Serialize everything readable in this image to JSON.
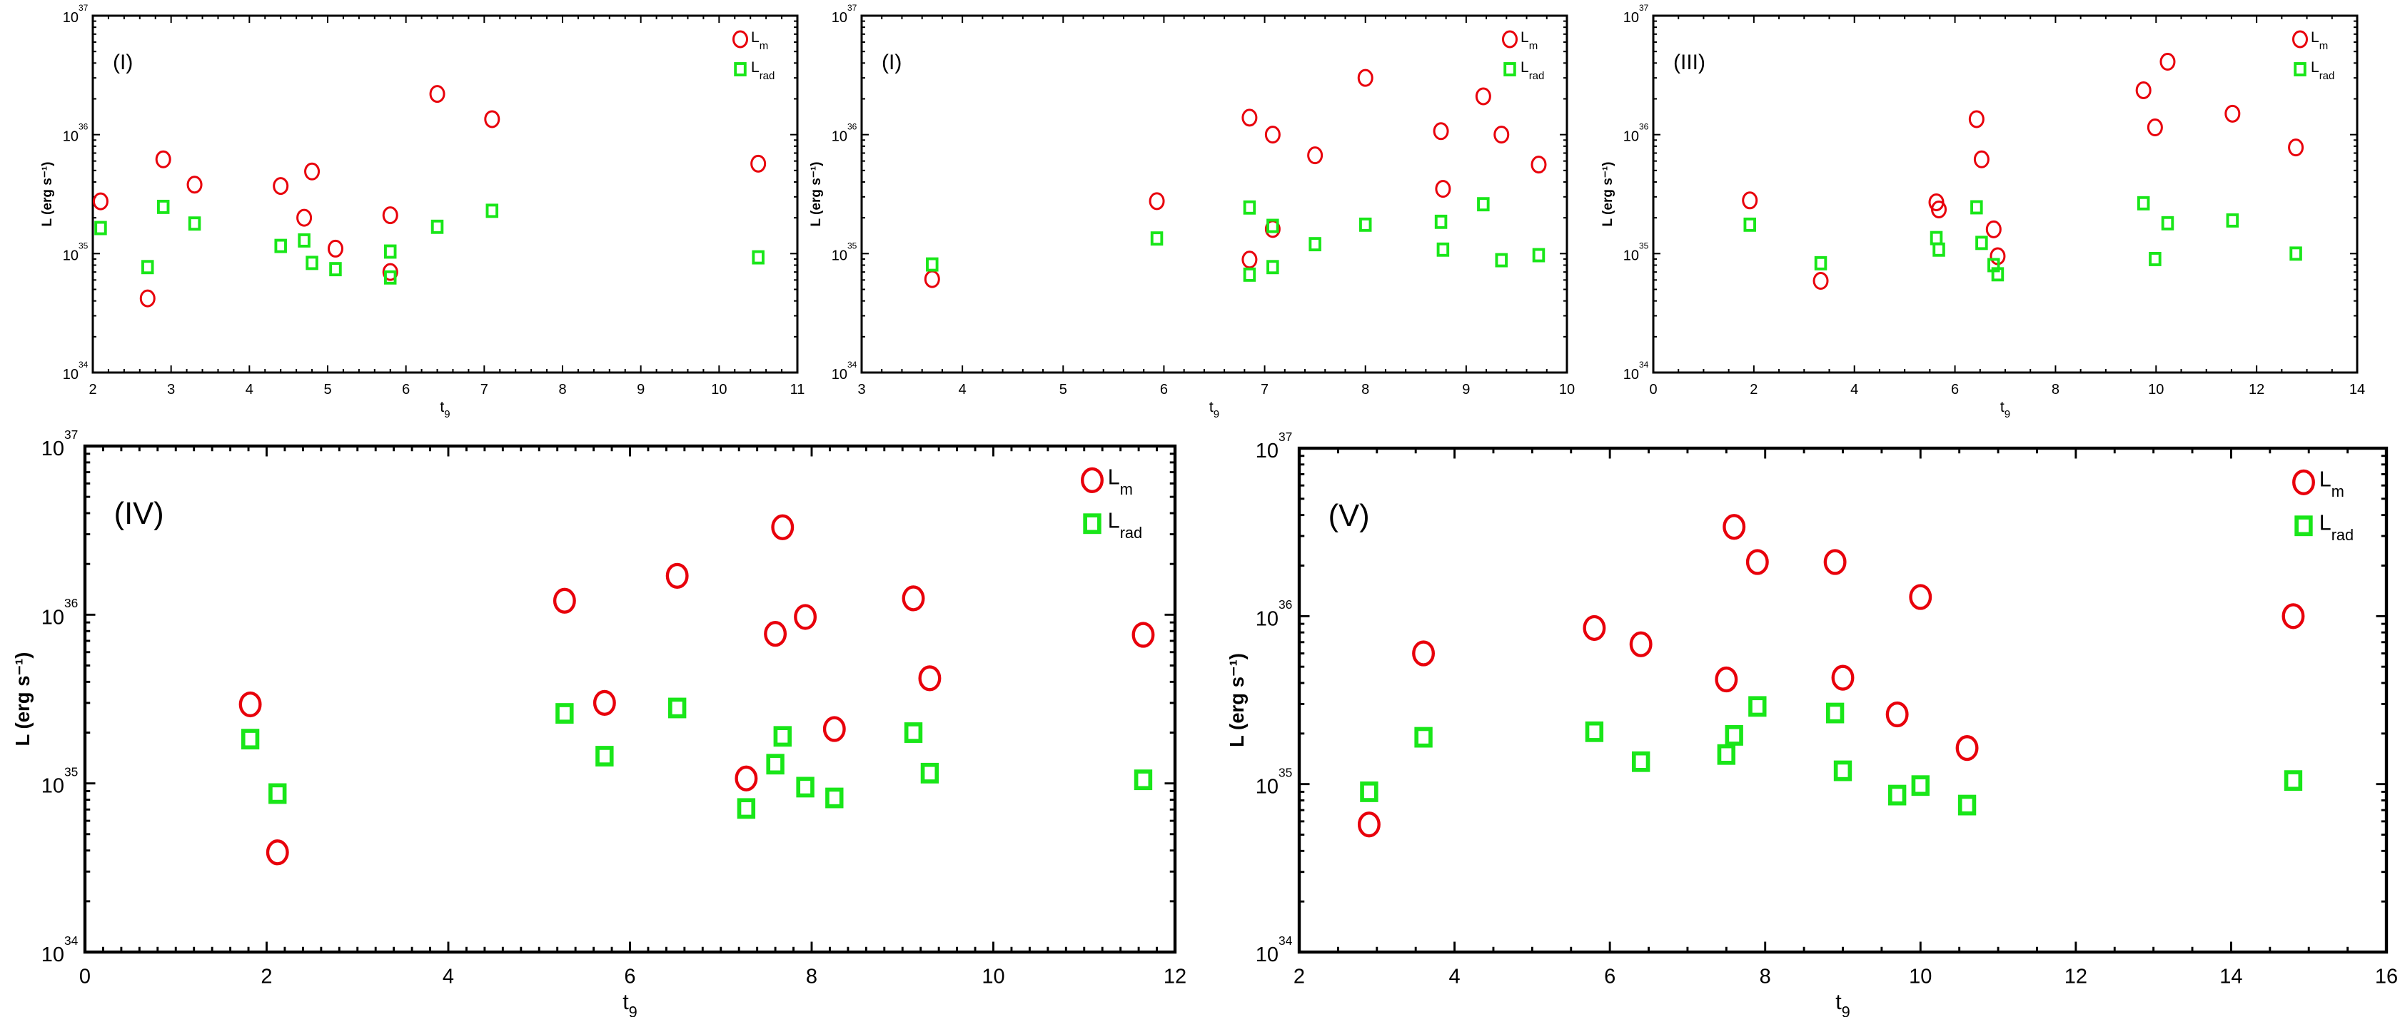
{
  "colors": {
    "lm": "#e8000b",
    "lrad": "#19e619",
    "axis": "#000000"
  },
  "chart_data": [
    {
      "type": "scatter",
      "title": "(I)",
      "xlabel": {
        "base": "t",
        "sub": "9"
      },
      "ylabel": "L (erg s⁻¹)",
      "xlim": [
        2,
        11
      ],
      "xticks": [
        2,
        3,
        4,
        5,
        6,
        7,
        8,
        9,
        10,
        11
      ],
      "xminor": 0.2,
      "ylim": [
        1e+34,
        1e+37
      ],
      "yscale": "log",
      "ytick_base": "10",
      "ytick_exponents": [
        34,
        35,
        36,
        37
      ],
      "legend": [
        {
          "base": "L",
          "sub": "m",
          "marker": "circle"
        },
        {
          "base": "L",
          "sub": "rad",
          "marker": "square"
        }
      ],
      "legend_position": "top-right",
      "series": [
        {
          "name": "L_m",
          "marker": "circle",
          "x": [
            2.1,
            2.7,
            2.9,
            3.3,
            4.4,
            4.7,
            4.8,
            5.1,
            5.8,
            5.8,
            6.4,
            7.1,
            10.5
          ],
          "y": [
            2.75e+35,
            4.2e+34,
            6.2e+35,
            3.8e+35,
            3.7e+35,
            2e+35,
            4.9e+35,
            1.1e+35,
            2.1e+35,
            7e+34,
            2.2e+36,
            1.35e+36,
            5.7e+35
          ]
        },
        {
          "name": "L_rad",
          "marker": "square",
          "x": [
            2.1,
            2.7,
            2.9,
            3.3,
            4.4,
            4.7,
            4.8,
            5.1,
            5.8,
            5.8,
            6.4,
            7.1,
            10.5
          ],
          "y": [
            1.64e+35,
            7.7e+34,
            2.47e+35,
            1.79e+35,
            1.16e+35,
            1.29e+35,
            8.35e+34,
            7.4e+34,
            1.04e+35,
            6.3e+34,
            1.68e+35,
            2.29e+35,
            9.3e+34
          ]
        }
      ]
    },
    {
      "type": "scatter",
      "title": "(I)",
      "xlabel": {
        "base": "t",
        "sub": "9"
      },
      "ylabel": "L (erg s⁻¹)",
      "xlim": [
        3,
        10
      ],
      "xticks": [
        3,
        4,
        5,
        6,
        7,
        8,
        9,
        10
      ],
      "xminor": 0.2,
      "ylim": [
        1e+34,
        1e+37
      ],
      "yscale": "log",
      "ytick_base": "10",
      "ytick_exponents": [
        34,
        35,
        36,
        37
      ],
      "legend": [
        {
          "base": "L",
          "sub": "m",
          "marker": "circle"
        },
        {
          "base": "L",
          "sub": "rad",
          "marker": "square"
        }
      ],
      "legend_position": "top-right",
      "series": [
        {
          "name": "L_m",
          "marker": "circle",
          "x": [
            3.7,
            5.93,
            6.85,
            6.85,
            7.08,
            7.08,
            7.5,
            8.0,
            8.75,
            8.77,
            9.17,
            9.35,
            9.72
          ],
          "y": [
            6.1e+34,
            2.76e+35,
            1.39e+36,
            8.9e+34,
            1e+36,
            1.61e+35,
            6.7e+35,
            3e+36,
            1.07e+36,
            3.5e+35,
            2.1e+36,
            1e+36,
            5.6e+35
          ]
        },
        {
          "name": "L_rad",
          "marker": "square",
          "x": [
            3.7,
            5.93,
            6.85,
            6.85,
            7.08,
            7.08,
            7.5,
            8.0,
            8.75,
            8.77,
            9.17,
            9.35,
            9.72
          ],
          "y": [
            8.1e+34,
            1.34e+35,
            2.44e+35,
            6.65e+34,
            1.71e+35,
            7.7e+34,
            1.2e+35,
            1.75e+35,
            1.85e+35,
            1.08e+35,
            2.6e+35,
            8.8e+34,
            9.7e+34
          ]
        }
      ]
    },
    {
      "type": "scatter",
      "title": "(III)",
      "xlabel": {
        "base": "t",
        "sub": "9"
      },
      "ylabel": "L (erg s⁻¹)",
      "xlim": [
        0,
        14
      ],
      "xticks": [
        0,
        2,
        4,
        6,
        8,
        10,
        12,
        14
      ],
      "xminor": 0.5,
      "ylim": [
        1e+34,
        1e+37
      ],
      "yscale": "log",
      "ytick_base": "10",
      "ytick_exponents": [
        34,
        35,
        36,
        37
      ],
      "legend": [
        {
          "base": "L",
          "sub": "m",
          "marker": "circle"
        },
        {
          "base": "L",
          "sub": "rad",
          "marker": "square"
        }
      ],
      "legend_position": "top-right",
      "series": [
        {
          "name": "L_m",
          "marker": "circle",
          "x": [
            1.92,
            3.33,
            5.63,
            5.68,
            6.43,
            6.53,
            6.77,
            6.85,
            9.75,
            9.98,
            10.23,
            11.52,
            12.78
          ],
          "y": [
            2.8e+35,
            5.9e+34,
            2.7e+35,
            2.35e+35,
            1.35e+36,
            6.2e+35,
            1.6e+35,
            9.5e+34,
            2.36e+36,
            1.15e+36,
            4.1e+36,
            1.5e+36,
            7.8e+35
          ]
        },
        {
          "name": "L_rad",
          "marker": "square",
          "x": [
            1.92,
            3.33,
            5.63,
            5.68,
            6.43,
            6.53,
            6.77,
            6.85,
            9.75,
            9.98,
            10.23,
            11.52,
            12.78
          ],
          "y": [
            1.75e+35,
            8.3e+34,
            1.35e+35,
            1.08e+35,
            2.45e+35,
            1.23e+35,
            8e+34,
            6.7e+34,
            2.65e+35,
            9e+34,
            1.8e+35,
            1.9e+35,
            1e+35
          ]
        }
      ]
    },
    {
      "type": "scatter",
      "title": "(IV)",
      "xlabel": {
        "base": "t",
        "sub": "9"
      },
      "ylabel": "L (erg s⁻¹)",
      "xlim": [
        0,
        12
      ],
      "xticks": [
        0,
        2,
        4,
        6,
        8,
        10,
        12
      ],
      "xminor": 0.2,
      "ylim": [
        1e+34,
        1e+37
      ],
      "yscale": "log",
      "ytick_base": "10",
      "ytick_exponents": [
        34,
        35,
        36,
        37
      ],
      "legend": [
        {
          "base": "L",
          "sub": "m",
          "marker": "circle"
        },
        {
          "base": "L",
          "sub": "rad",
          "marker": "square"
        }
      ],
      "legend_position": "top-right",
      "series": [
        {
          "name": "L_m",
          "marker": "circle",
          "x": [
            1.82,
            2.12,
            5.28,
            5.72,
            6.52,
            7.28,
            7.6,
            7.68,
            7.93,
            8.25,
            9.12,
            9.3,
            11.65
          ],
          "y": [
            2.94e+35,
            3.9e+34,
            1.21e+36,
            3e+35,
            1.7e+36,
            1.07e+35,
            7.7e+35,
            3.3e+36,
            9.7e+35,
            2.1e+35,
            1.25e+36,
            4.2e+35,
            7.6e+35
          ]
        },
        {
          "name": "L_rad",
          "marker": "square",
          "x": [
            1.82,
            2.12,
            5.28,
            5.72,
            6.52,
            7.28,
            7.6,
            7.68,
            7.93,
            8.25,
            9.12,
            9.3,
            11.65
          ],
          "y": [
            1.83e+35,
            8.7e+34,
            2.6e+35,
            1.45e+35,
            2.8e+35,
            7.1e+34,
            1.3e+35,
            1.9e+35,
            9.5e+34,
            8.2e+34,
            2e+35,
            1.15e+35,
            1.05e+35
          ]
        }
      ]
    },
    {
      "type": "scatter",
      "title": "(V)",
      "xlabel": {
        "base": "t",
        "sub": "9"
      },
      "ylabel": "L (erg s⁻¹)",
      "xlim": [
        2,
        16
      ],
      "xticks": [
        2,
        4,
        6,
        8,
        10,
        12,
        14,
        16
      ],
      "xminor": 0.5,
      "ylim": [
        1e+34,
        1e+37
      ],
      "yscale": "log",
      "ytick_base": "10",
      "ytick_exponents": [
        34,
        35,
        36,
        37
      ],
      "legend": [
        {
          "base": "L",
          "sub": "m",
          "marker": "circle"
        },
        {
          "base": "L",
          "sub": "rad",
          "marker": "square"
        }
      ],
      "legend_position": "top-right",
      "series": [
        {
          "name": "L_m",
          "marker": "circle",
          "x": [
            2.9,
            3.6,
            5.8,
            6.4,
            7.5,
            7.6,
            7.9,
            8.9,
            9.0,
            9.7,
            10.0,
            10.6,
            14.8
          ],
          "y": [
            5.75e+34,
            6e+35,
            8.5e+35,
            6.8e+35,
            4.2e+35,
            3.4e+36,
            2.1e+36,
            2.1e+36,
            4.3e+35,
            2.6e+35,
            1.3e+36,
            1.64e+35,
            1e+36
          ]
        },
        {
          "name": "L_rad",
          "marker": "square",
          "x": [
            2.9,
            3.6,
            5.8,
            6.4,
            7.5,
            7.6,
            7.9,
            8.9,
            9.0,
            9.7,
            10.0,
            10.6,
            14.8
          ],
          "y": [
            9e+34,
            1.9e+35,
            2.05e+35,
            1.36e+35,
            1.5e+35,
            1.95e+35,
            2.9e+35,
            2.65e+35,
            1.2e+35,
            8.6e+34,
            9.8e+34,
            7.5e+34,
            1.05e+35
          ]
        }
      ]
    }
  ]
}
